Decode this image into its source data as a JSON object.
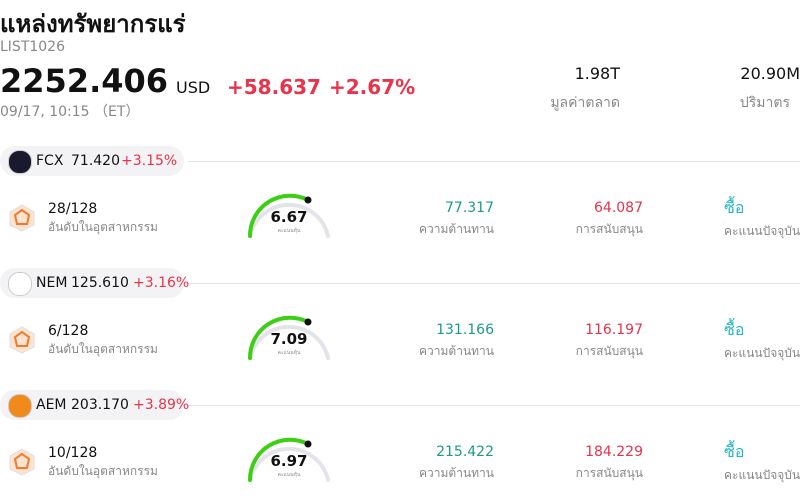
{
  "header": {
    "title": "แหล่งทรัพยากรแร่",
    "code": "LIST1026",
    "price": "2252.406",
    "currency": "USD",
    "change": "+58.637",
    "change_pct": "+2.67%",
    "time": "09/17, 10:15 （ET）",
    "market_cap": "1.98T",
    "market_cap_label": "มูลค่าตลาด",
    "volume": "20.90M",
    "volume_label": "ปริมาตร"
  },
  "stocks": [
    {
      "ticker": "FCX",
      "price": "71.420",
      "change_pct": "+3.15%",
      "rank": "28/128",
      "rank_label": "อันดับในอุตสาหกรรม",
      "score": 6.67,
      "score_label": "คะแนนหุ้น",
      "resistance": "77.317",
      "resistance_label": "ความต้านทาน",
      "support": "64.087",
      "support_label": "การสนับสนุน",
      "signal": "ซื้อ",
      "signal_label": "คะแนนปัจจุบัน"
    },
    {
      "ticker": "NEM",
      "price": "125.610",
      "change_pct": "+3.16%",
      "rank": "6/128",
      "rank_label": "อันดับในอุตสาหกรรม",
      "score": 7.09,
      "score_label": "คะแนนหุ้น",
      "resistance": "131.166",
      "resistance_label": "ความต้านทาน",
      "support": "116.197",
      "support_label": "การสนับสนุน",
      "signal": "ซื้อ",
      "signal_label": "คะแนนปัจจุบัน"
    },
    {
      "ticker": "AEM",
      "price": "203.170",
      "change_pct": "+3.89%",
      "rank": "10/128",
      "rank_label": "อันดับในอุตสาหกรรม",
      "score": 6.97,
      "score_label": "คะแนนหุ้น",
      "resistance": "215.422",
      "resistance_label": "ความต้านทาน",
      "support": "184.229",
      "support_label": "การสนับสนุน",
      "signal": "ซื้อ",
      "signal_label": "คะแนนปัจจุบัน"
    }
  ]
}
